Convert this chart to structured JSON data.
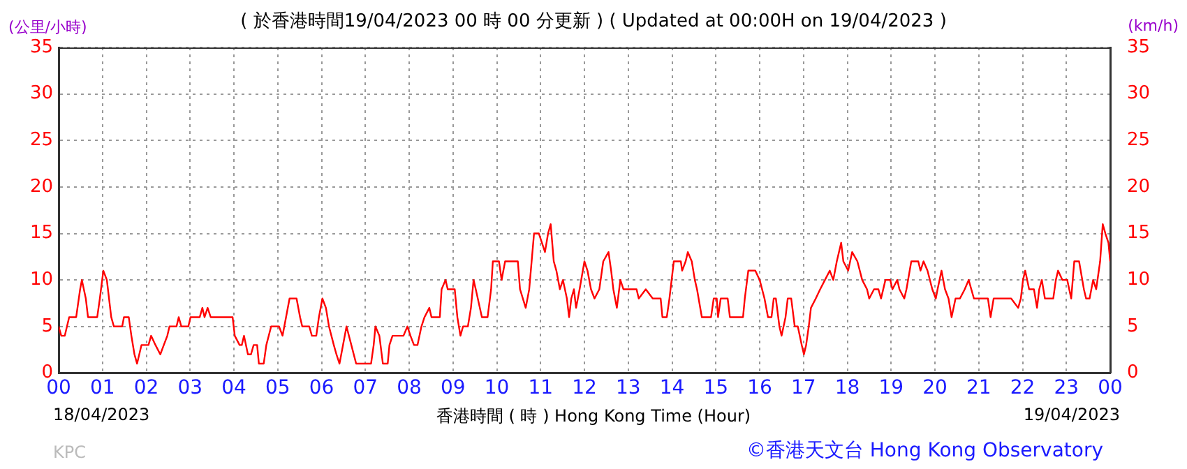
{
  "chart_data": {
    "type": "line",
    "title": "( 於香港時間19/04/2023 00 時 00 分更新 ) ( Updated at 00:00H on 19/04/2023 )",
    "xlabel": "香港時間 ( 時 ) Hong Kong Time (Hour)",
    "ylabel": "(公里/小時)",
    "y2label": "(km/h)",
    "annotations": [
      "18/04/2023",
      "19/04/2023",
      "KPC",
      "©香港天文台 Hong Kong Observatory"
    ],
    "xlim": [
      0,
      24
    ],
    "xticks": [
      {
        "value": 0,
        "label": "00"
      },
      {
        "value": 1,
        "label": "01"
      },
      {
        "value": 2,
        "label": "02"
      },
      {
        "value": 3,
        "label": "03"
      },
      {
        "value": 4,
        "label": "04"
      },
      {
        "value": 5,
        "label": "05"
      },
      {
        "value": 6,
        "label": "06"
      },
      {
        "value": 7,
        "label": "07"
      },
      {
        "value": 8,
        "label": "08"
      },
      {
        "value": 9,
        "label": "09"
      },
      {
        "value": 10,
        "label": "10"
      },
      {
        "value": 11,
        "label": "11"
      },
      {
        "value": 12,
        "label": "12"
      },
      {
        "value": 13,
        "label": "13"
      },
      {
        "value": 14,
        "label": "14"
      },
      {
        "value": 15,
        "label": "15"
      },
      {
        "value": 16,
        "label": "16"
      },
      {
        "value": 17,
        "label": "17"
      },
      {
        "value": 18,
        "label": "18"
      },
      {
        "value": 19,
        "label": "19"
      },
      {
        "value": 20,
        "label": "20"
      },
      {
        "value": 21,
        "label": "21"
      },
      {
        "value": 22,
        "label": "22"
      },
      {
        "value": 23,
        "label": "23"
      },
      {
        "value": 24,
        "label": "00"
      }
    ],
    "ylim": [
      0,
      35
    ],
    "yticks": [
      0,
      5,
      10,
      15,
      20,
      25,
      30,
      35
    ],
    "y2lim": [
      0,
      35
    ],
    "y2ticks": [
      0,
      5,
      10,
      15,
      20,
      25,
      30,
      35
    ],
    "grid": true,
    "series": [
      {
        "color": "#ff0000",
        "x": [
          0,
          0.06,
          0.14,
          0.19,
          0.24,
          0.4,
          0.49,
          0.53,
          0.62,
          0.67,
          0.88,
          0.94,
          1.02,
          1.1,
          1.2,
          1.26,
          1.45,
          1.49,
          1.6,
          1.66,
          1.73,
          1.79,
          1.84,
          1.89,
          2.05,
          2.11,
          2.21,
          2.32,
          2.4,
          2.48,
          2.53,
          2.69,
          2.74,
          2.8,
          2.96,
          3.01,
          3.22,
          3.28,
          3.33,
          3.4,
          3.47,
          3.97,
          4.02,
          4.13,
          4.18,
          4.23,
          4.32,
          4.39,
          4.45,
          4.53,
          4.57,
          4.68,
          4.74,
          4.85,
          5.03,
          5.11,
          5.19,
          5.27,
          5.43,
          5.51,
          5.56,
          5.72,
          5.78,
          5.88,
          5.94,
          6.02,
          6.1,
          6.17,
          6.28,
          6.34,
          6.41,
          6.49,
          6.57,
          6.68,
          6.79,
          7.13,
          7.19,
          7.23,
          7.32,
          7.4,
          7.51,
          7.55,
          7.62,
          7.87,
          7.96,
          8.03,
          8.11,
          8.19,
          8.28,
          8.35,
          8.46,
          8.51,
          8.7,
          8.74,
          8.83,
          8.88,
          9.04,
          9.1,
          9.17,
          9.23,
          9.34,
          9.41,
          9.47,
          9.52,
          9.66,
          9.79,
          9.87,
          9.91,
          10.05,
          10.11,
          10.19,
          10.48,
          10.53,
          10.66,
          10.74,
          10.85,
          10.96,
          11.03,
          11.1,
          11.17,
          11.23,
          11.3,
          11.36,
          11.44,
          11.51,
          11.6,
          11.65,
          11.7,
          11.76,
          11.81,
          11.89,
          12.0,
          12.07,
          12.15,
          12.23,
          12.34,
          12.43,
          12.55,
          12.61,
          12.66,
          12.74,
          12.82,
          12.89,
          13.19,
          13.24,
          13.4,
          13.56,
          13.74,
          13.78,
          13.88,
          13.94,
          14.04,
          14.2,
          14.23,
          14.31,
          14.36,
          14.45,
          14.52,
          14.57,
          14.68,
          14.89,
          14.95,
          15.02,
          15.05,
          15.11,
          15.27,
          15.32,
          15.62,
          15.66,
          15.74,
          15.9,
          16.0,
          16.11,
          16.19,
          16.27,
          16.32,
          16.37,
          16.45,
          16.5,
          16.59,
          16.64,
          16.72,
          16.8,
          16.87,
          16.96,
          17.01,
          17.06,
          17.12,
          17.17,
          17.28,
          17.38,
          17.49,
          17.6,
          17.68,
          17.76,
          17.86,
          17.91,
          18.02,
          18.11,
          18.23,
          18.34,
          18.45,
          18.5,
          18.61,
          18.71,
          18.77,
          18.87,
          18.98,
          19.03,
          19.14,
          19.19,
          19.3,
          19.35,
          19.46,
          19.62,
          19.67,
          19.74,
          19.83,
          19.94,
          20.02,
          20.06,
          20.15,
          20.23,
          20.31,
          20.38,
          20.47,
          20.57,
          20.68,
          20.77,
          20.89,
          21.21,
          21.27,
          21.34,
          21.74,
          21.9,
          21.96,
          22.01,
          22.06,
          22.15,
          22.26,
          22.33,
          22.38,
          22.44,
          22.51,
          22.7,
          22.76,
          22.81,
          22.91,
          23.02,
          23.11,
          23.18,
          23.29,
          23.4,
          23.45,
          23.53,
          23.61,
          23.68,
          23.77,
          23.83,
          23.89,
          23.96,
          24.0
        ],
        "values": [
          5,
          4,
          4,
          5,
          6,
          6,
          9,
          10,
          8,
          6,
          6,
          8,
          11,
          10,
          6,
          5,
          5,
          6,
          6,
          4,
          2,
          1,
          2,
          3,
          3,
          4,
          3,
          2,
          3,
          4,
          5,
          5,
          6,
          5,
          5,
          6,
          6,
          7,
          6,
          7,
          6,
          6,
          4,
          3,
          3,
          4,
          2,
          2,
          3,
          3,
          1,
          1,
          3,
          5,
          5,
          4,
          6,
          8,
          8,
          6,
          5,
          5,
          4,
          4,
          6,
          8,
          7,
          5,
          3,
          2,
          1,
          3,
          5,
          3,
          1,
          1,
          3,
          5,
          4,
          1,
          1,
          3,
          4,
          4,
          5,
          4,
          3,
          3,
          5,
          6,
          7,
          6,
          6,
          9,
          10,
          9,
          9,
          6,
          4,
          5,
          5,
          7,
          10,
          9,
          6,
          6,
          9,
          12,
          12,
          10,
          12,
          12,
          9,
          7,
          9,
          15,
          15,
          14,
          13,
          15,
          16,
          12,
          11,
          9,
          10,
          8,
          6,
          8,
          9,
          7,
          9,
          12,
          11,
          9,
          8,
          9,
          12,
          13,
          11,
          9,
          7,
          10,
          9,
          9,
          8,
          9,
          8,
          8,
          6,
          6,
          8,
          12,
          12,
          11,
          12,
          13,
          12,
          10,
          9,
          6,
          6,
          8,
          8,
          6,
          8,
          8,
          6,
          6,
          8,
          11,
          11,
          10,
          8,
          6,
          6,
          8,
          8,
          5,
          4,
          6,
          8,
          8,
          5,
          5,
          3,
          2,
          3,
          5,
          7,
          8,
          9,
          10,
          11,
          10,
          12,
          14,
          12,
          11,
          13,
          12,
          10,
          9,
          8,
          9,
          9,
          8,
          10,
          10,
          9,
          10,
          9,
          8,
          9,
          12,
          12,
          11,
          12,
          11,
          9,
          8,
          9,
          11,
          9,
          8,
          6,
          8,
          8,
          9,
          10,
          8,
          8,
          6,
          8,
          8,
          7,
          8,
          10,
          11,
          9,
          9,
          7,
          9,
          10,
          8,
          8,
          10,
          11,
          10,
          10,
          8,
          12,
          12,
          9,
          8,
          8,
          10,
          9,
          12,
          16,
          15,
          14,
          12
        ]
      }
    ]
  }
}
